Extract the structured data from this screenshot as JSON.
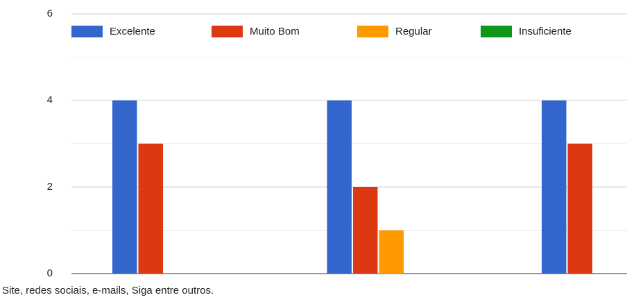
{
  "chart_data": {
    "type": "bar",
    "categories": [
      "Site, redes sociais, e-mails, Siga entre outros.",
      null,
      null
    ],
    "series": [
      {
        "name": "Excelente",
        "color": "#3366cc",
        "values": [
          4,
          4,
          4
        ]
      },
      {
        "name": "Muito Bom",
        "color": "#dc3912",
        "values": [
          3,
          2,
          3
        ]
      },
      {
        "name": "Regular",
        "color": "#ff9900",
        "values": [
          0,
          1,
          0
        ]
      },
      {
        "name": "Insuficiente",
        "color": "#109618",
        "values": [
          0,
          0,
          0
        ]
      }
    ],
    "ylim": [
      0,
      6
    ],
    "yticks": [
      0,
      2,
      4,
      6
    ],
    "minor_yticks": [
      1,
      3,
      5
    ],
    "grid": true,
    "legend": "top"
  }
}
